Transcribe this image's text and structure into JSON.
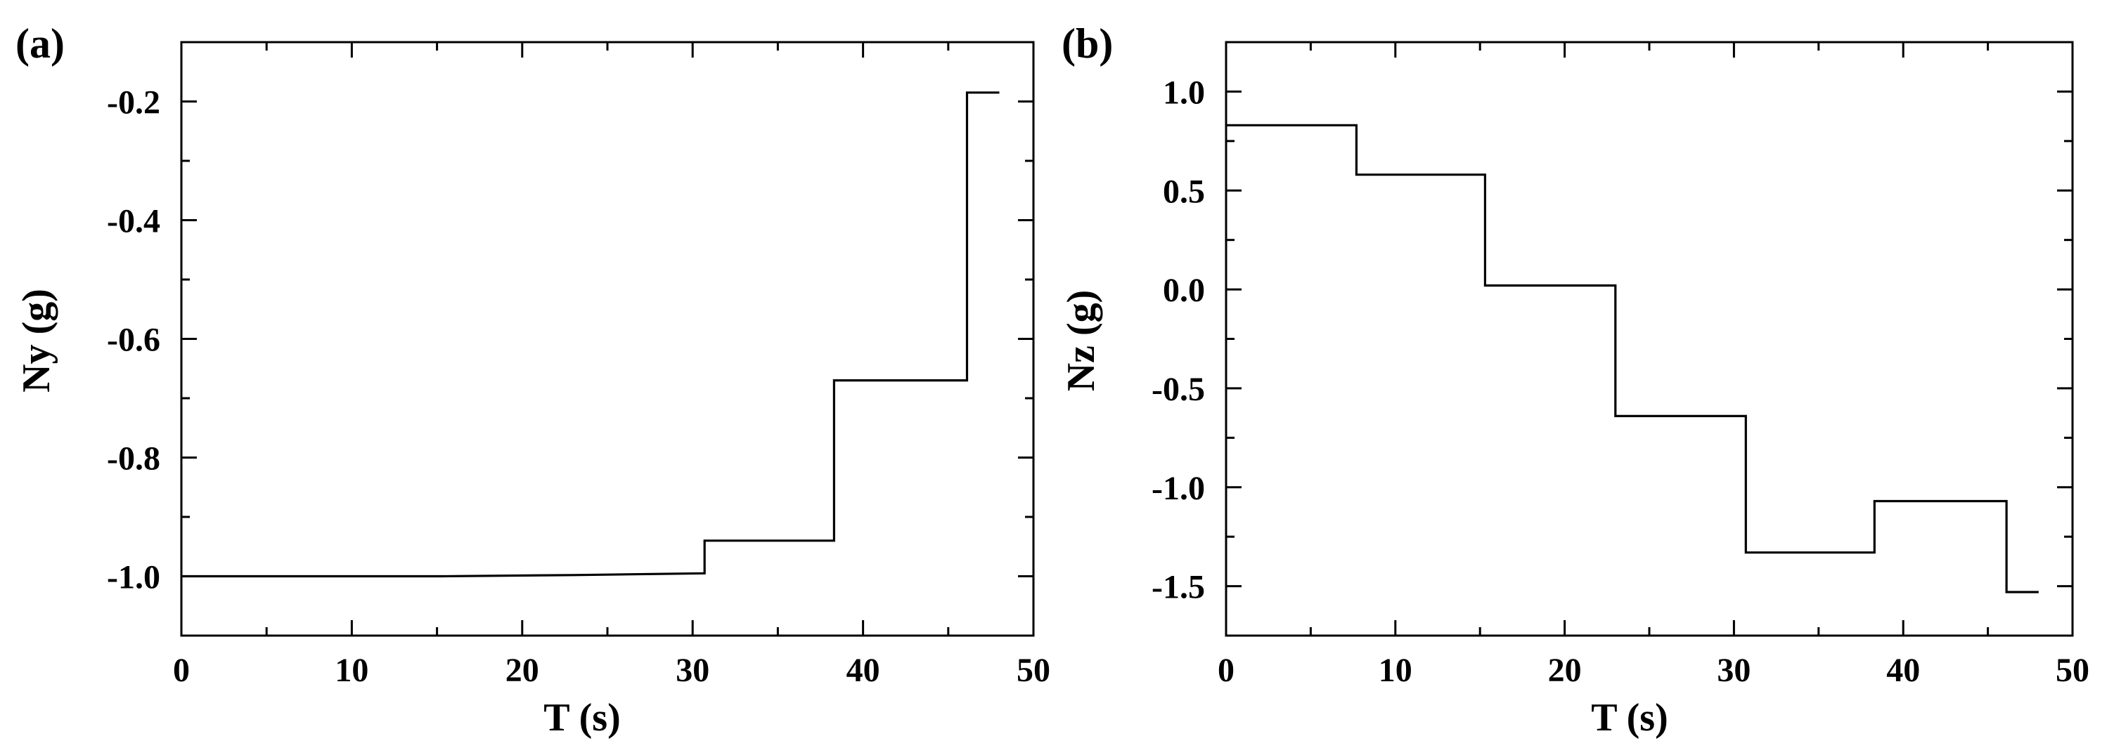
{
  "chart_data": [
    {
      "type": "line",
      "panel_label": "(a)",
      "xlabel": "T (s)",
      "ylabel": "Ny (g)",
      "xlim": [
        0,
        50
      ],
      "ylim": [
        -1.1,
        -0.1
      ],
      "xticks": [
        0,
        10,
        20,
        30,
        40,
        50
      ],
      "yticks": [
        -1.0,
        -0.8,
        -0.6,
        -0.4,
        -0.2
      ],
      "x_tick_labels": [
        "0",
        "10",
        "20",
        "30",
        "40",
        "50"
      ],
      "y_tick_labels": [
        "-1.0",
        "-0.8",
        "-0.6",
        "-0.4",
        "-0.2"
      ],
      "grid": false,
      "series": [
        {
          "x": [
            0,
            15.3,
            23,
            30.7,
            30.7,
            38.3,
            38.3,
            46.1,
            46.1,
            48
          ],
          "y": [
            -1.0,
            -1.0,
            -0.998,
            -0.995,
            -0.94,
            -0.94,
            -0.67,
            -0.67,
            -0.185,
            -0.185
          ]
        }
      ]
    },
    {
      "type": "line",
      "panel_label": "(b)",
      "xlabel": "T (s)",
      "ylabel": "Nz (g)",
      "xlim": [
        0,
        50
      ],
      "ylim": [
        -1.75,
        1.25
      ],
      "xticks": [
        0,
        10,
        20,
        30,
        40,
        50
      ],
      "yticks": [
        -1.5,
        -1.0,
        -0.5,
        0.0,
        0.5,
        1.0
      ],
      "x_tick_labels": [
        "0",
        "10",
        "20",
        "30",
        "40",
        "50"
      ],
      "y_tick_labels": [
        "-1.5",
        "-1.0",
        "-0.5",
        "0.0",
        "0.5",
        "1.0"
      ],
      "grid": false,
      "series": [
        {
          "x": [
            0,
            7.7,
            7.7,
            15.3,
            15.3,
            23,
            23,
            30.7,
            30.7,
            38.3,
            38.3,
            46.1,
            46.1,
            48
          ],
          "y": [
            0.83,
            0.83,
            0.58,
            0.58,
            0.02,
            0.02,
            -0.64,
            -0.64,
            -1.33,
            -1.33,
            -1.07,
            -1.07,
            -1.53,
            -1.53
          ]
        }
      ]
    }
  ]
}
